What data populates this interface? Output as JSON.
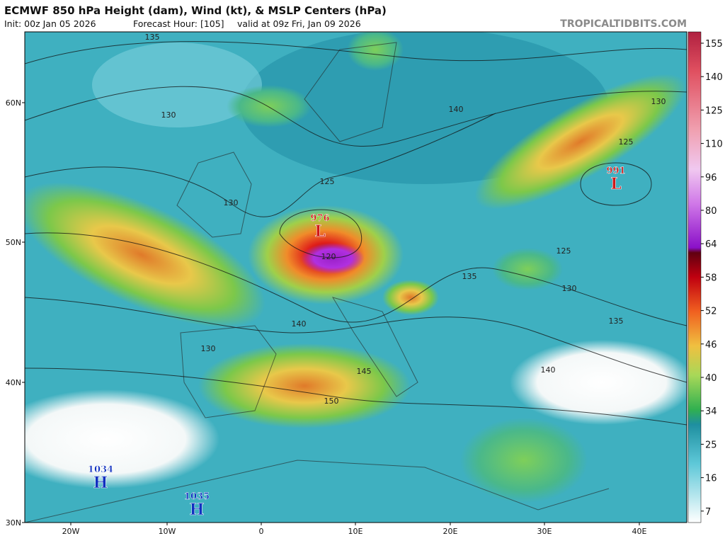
{
  "header": {
    "title": "ECMWF 850 hPa Height (dam), Wind (kt), & MSLP Centers (hPa)",
    "init": "Init: 00z Jan 05 2026",
    "forecast_hour": "Forecast Hour: [105]",
    "valid": "valid at 09z Fri, Jan 09 2026",
    "site": "TROPICALTIDBITS.COM"
  },
  "axes": {
    "lat_labels": [
      "60N",
      "50N",
      "40N",
      "30N"
    ],
    "lon_labels": [
      "20W",
      "10W",
      "0",
      "10E",
      "20E",
      "30E",
      "40E"
    ]
  },
  "colorbar": {
    "labels": [
      "155",
      "140",
      "125",
      "110",
      "96",
      "80",
      "64",
      "58",
      "52",
      "46",
      "40",
      "34",
      "25",
      "16",
      "7"
    ]
  },
  "pressure_centers": [
    {
      "value": "976",
      "symbol": "L"
    },
    {
      "value": "991",
      "symbol": "L"
    },
    {
      "value": "1034",
      "symbol": "H"
    },
    {
      "value": "1035",
      "symbol": "H"
    }
  ],
  "contour_labels": [
    "135",
    "130",
    "130",
    "125",
    "140",
    "130",
    "125",
    "125",
    "130",
    "135",
    "135",
    "140",
    "130",
    "145",
    "150",
    "140",
    "120"
  ]
}
